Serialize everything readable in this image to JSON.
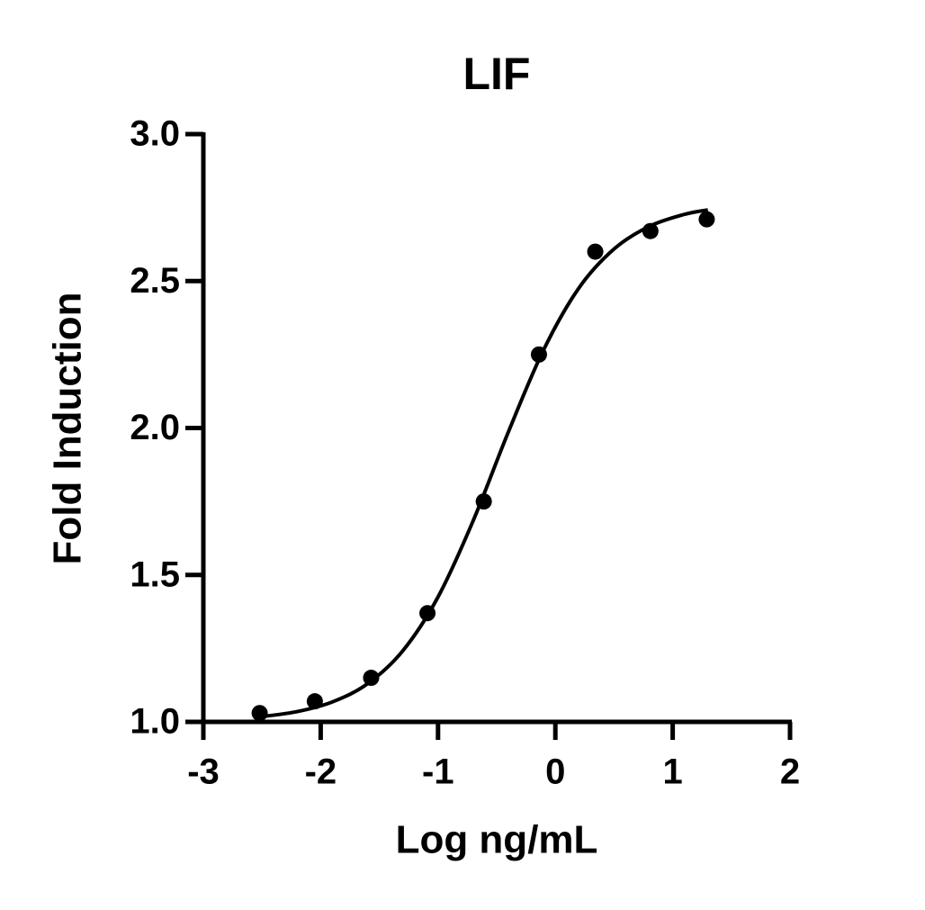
{
  "chart_data": {
    "type": "scatter",
    "title": "LIF",
    "x_label": "Log ng/mL",
    "y_label": "Fold Induction",
    "x": [
      -2.52,
      -2.05,
      -1.57,
      -1.09,
      -0.61,
      -0.14,
      0.34,
      0.81,
      1.29
    ],
    "values": [
      1.03,
      1.07,
      1.15,
      1.37,
      1.75,
      2.25,
      2.6,
      2.67,
      2.71
    ],
    "fit_x": [
      -2.5,
      -2.2,
      -1.9,
      -1.6,
      -1.3,
      -1.0,
      -0.7,
      -0.4,
      -0.1,
      0.2,
      0.5,
      0.8,
      1.1,
      1.3
    ],
    "fit_values": [
      1.018,
      1.035,
      1.068,
      1.13,
      1.242,
      1.425,
      1.685,
      1.987,
      2.266,
      2.476,
      2.609,
      2.686,
      2.727,
      2.742
    ],
    "color": "#000000",
    "xlim": [
      -3,
      2
    ],
    "xticks": [
      -3,
      -2,
      -1,
      0,
      1,
      2
    ],
    "ylim": [
      1.0,
      3.0
    ],
    "yticks": [
      {
        "value": 1.0,
        "label": "1.0"
      },
      {
        "value": 1.5,
        "label": "1.5"
      },
      {
        "value": 2.0,
        "label": "2.0"
      },
      {
        "value": 2.5,
        "label": "2.5"
      },
      {
        "value": 3.0,
        "label": "3.0"
      }
    ],
    "grid": false
  }
}
